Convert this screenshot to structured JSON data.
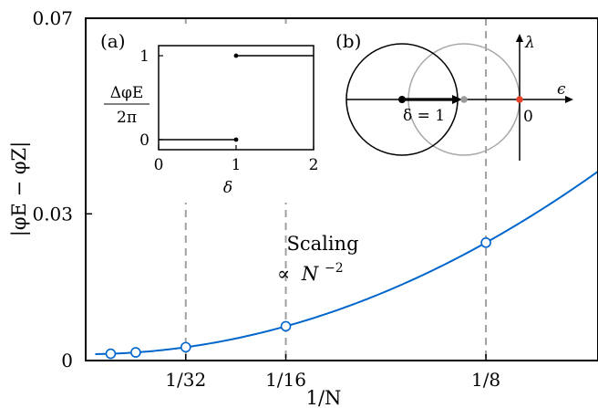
{
  "chart_data": [
    {
      "type": "line",
      "title": "",
      "xlabel": "1/N",
      "ylabel": "|φE − φZ|",
      "xlim": [
        0,
        0.16
      ],
      "ylim": [
        0,
        0.07
      ],
      "x_ticks": [
        {
          "value": 0.03125,
          "label": "1/32"
        },
        {
          "value": 0.0625,
          "label": "1/16"
        },
        {
          "value": 0.125,
          "label": "1/8"
        }
      ],
      "y_ticks": [
        {
          "value": 0,
          "label": "0"
        },
        {
          "value": 0.03,
          "label": "0.03"
        },
        {
          "value": 0.07,
          "label": "0.07"
        }
      ],
      "vlines": [
        0.03125,
        0.0625,
        0.125
      ],
      "curve": {
        "type": "quadratic",
        "a": 0.0013,
        "c": 1.46
      },
      "points": [
        {
          "x": 0.0078125,
          "y": 0.00139
        },
        {
          "x": 0.015625,
          "y": 0.00166
        },
        {
          "x": 0.03125,
          "y": 0.00273
        },
        {
          "x": 0.0625,
          "y": 0.00701
        },
        {
          "x": 0.125,
          "y": 0.02411
        }
      ],
      "annotation": {
        "line1": "Scaling",
        "line2_prefix": "∝",
        "line2_base": "N",
        "line2_exp": "−2"
      },
      "colors": {
        "curve": "#0066cc",
        "marker_face": "#ffffff",
        "marker_edge": "#0066cc",
        "vline": "#a0a0a0"
      }
    },
    {
      "type": "step",
      "panel_label": "(a)",
      "xlabel": "δ",
      "ylabel_num": "ΔφE",
      "ylabel_den": "2π",
      "xlim": [
        0,
        2
      ],
      "ylim": [
        -0.12,
        1.12
      ],
      "x_ticks": [
        "0",
        "1",
        "2"
      ],
      "y_ticks": [
        "0",
        "1"
      ],
      "segments": [
        {
          "x": [
            0,
            1
          ],
          "y": 0,
          "endpoint": "right"
        },
        {
          "x": [
            1,
            2
          ],
          "y": 1,
          "endpoint": "left"
        }
      ]
    },
    {
      "type": "diagram",
      "panel_label": "(b)",
      "axis_label_x": "ϵ",
      "axis_label_y": "λ",
      "label_delta": "δ = 1",
      "label_origin": "0",
      "colors": {
        "circle_black": "#000000",
        "circle_gray": "#a8a8a8",
        "origin_point": "#e8402a",
        "gray_point": "#9a9a9a"
      }
    }
  ]
}
